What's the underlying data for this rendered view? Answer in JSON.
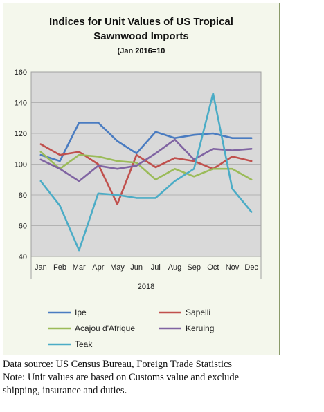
{
  "chart_data": {
    "type": "line",
    "title_lines": [
      "Indices for Unit Values of US Tropical",
      "Sawnwood Imports"
    ],
    "subtitle": "(Jan 2016=10",
    "categories": [
      "Jan",
      "Feb",
      "Mar",
      "Apr",
      "May",
      "Jun",
      "Jul",
      "Aug",
      "Sep",
      "Oct",
      "Nov",
      "Dec"
    ],
    "x_group_label": "2018",
    "ylim": [
      40,
      160
    ],
    "yticks": [
      40,
      60,
      80,
      100,
      120,
      140,
      160
    ],
    "grid": "horizontal",
    "legend_position": "bottom",
    "series": [
      {
        "name": "Ipe",
        "color": "#4a7cc1",
        "values": [
          106,
          102,
          127,
          127,
          115,
          107,
          121,
          117,
          119,
          120,
          117,
          117
        ]
      },
      {
        "name": "Sapelli",
        "color": "#c0504d",
        "values": [
          113,
          106,
          108,
          100,
          74,
          106,
          98,
          104,
          102,
          97,
          105,
          102
        ]
      },
      {
        "name": "Acajou d'Afrique",
        "color": "#9bbb59",
        "values": [
          108,
          97,
          106,
          105,
          102,
          101,
          90,
          97,
          92,
          97,
          97,
          90
        ]
      },
      {
        "name": "Keruing",
        "color": "#8064a2",
        "values": [
          103,
          97,
          89,
          99,
          97,
          99,
          107,
          116,
          103,
          110,
          109,
          110
        ]
      },
      {
        "name": "Teak",
        "color": "#4bacc6",
        "values": [
          89,
          73,
          44,
          81,
          80,
          78,
          78,
          89,
          97,
          146,
          84,
          69
        ]
      }
    ]
  },
  "notes": {
    "source": "Data source: US Census Bureau, Foreign Trade Statistics",
    "note_line1": "Note: Unit values are based on Customs value and exclude",
    "note_line2": "shipping, insurance and duties."
  }
}
